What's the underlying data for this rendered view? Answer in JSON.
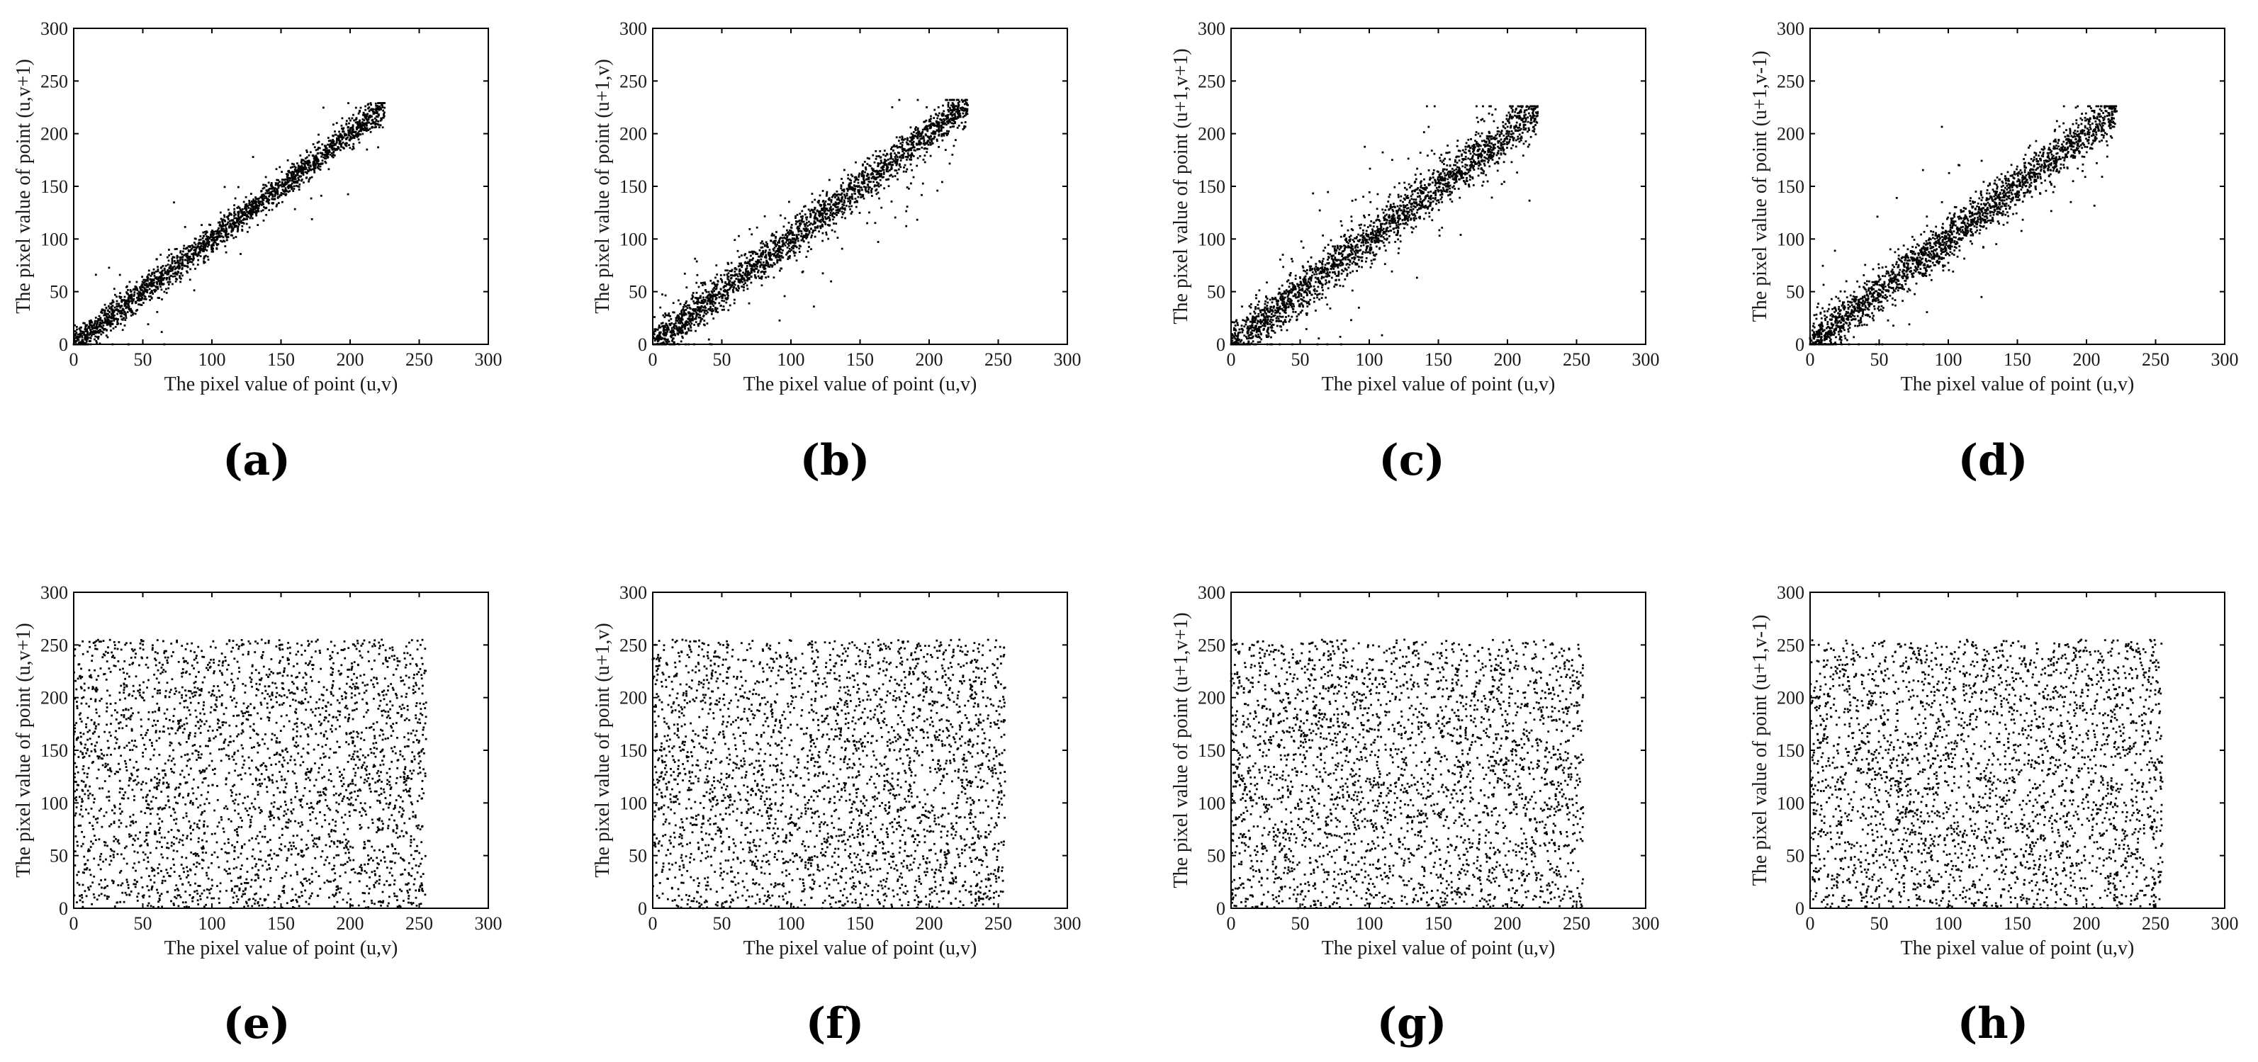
{
  "chart_data": [
    {
      "type": "scatter",
      "panel_label": "(a)",
      "xlabel": "The pixel value of point (u,v)",
      "ylabel": "The pixel value of point (u,v+1)",
      "xlim": [
        0,
        300
      ],
      "ylim": [
        0,
        300
      ],
      "xticks": [
        0,
        50,
        100,
        150,
        200,
        250,
        300
      ],
      "yticks": [
        0,
        50,
        100,
        150,
        200,
        250,
        300
      ],
      "pattern": "diagonal",
      "x_range": [
        0,
        225
      ],
      "spread": 7,
      "outlier_fraction": 0.03,
      "num_points": 2200,
      "seed": 11
    },
    {
      "type": "scatter",
      "panel_label": "(b)",
      "xlabel": "The pixel value of point (u,v)",
      "ylabel": "The pixel value of point (u+1,v)",
      "xlim": [
        0,
        300
      ],
      "ylim": [
        0,
        300
      ],
      "xticks": [
        0,
        50,
        100,
        150,
        200,
        250,
        300
      ],
      "yticks": [
        0,
        50,
        100,
        150,
        200,
        250,
        300
      ],
      "pattern": "diagonal",
      "x_range": [
        0,
        228
      ],
      "spread": 9,
      "outlier_fraction": 0.05,
      "num_points": 2200,
      "seed": 23
    },
    {
      "type": "scatter",
      "panel_label": "(c)",
      "xlabel": "The pixel value of point (u,v)",
      "ylabel": "The pixel value of point (u+1,v+1)",
      "xlim": [
        0,
        300
      ],
      "ylim": [
        0,
        300
      ],
      "xticks": [
        0,
        50,
        100,
        150,
        200,
        250,
        300
      ],
      "yticks": [
        0,
        50,
        100,
        150,
        200,
        250,
        300
      ],
      "pattern": "diagonal",
      "x_range": [
        0,
        222
      ],
      "spread": 11,
      "outlier_fraction": 0.07,
      "num_points": 2200,
      "seed": 37
    },
    {
      "type": "scatter",
      "panel_label": "(d)",
      "xlabel": "The pixel value of point (u,v)",
      "ylabel": "The pixel value of point (u+1,v-1)",
      "xlim": [
        0,
        300
      ],
      "ylim": [
        0,
        300
      ],
      "xticks": [
        0,
        50,
        100,
        150,
        200,
        250,
        300
      ],
      "yticks": [
        0,
        50,
        100,
        150,
        200,
        250,
        300
      ],
      "pattern": "diagonal",
      "x_range": [
        0,
        222
      ],
      "spread": 10,
      "outlier_fraction": 0.06,
      "num_points": 2200,
      "seed": 41
    },
    {
      "type": "scatter",
      "panel_label": "(e)",
      "xlabel": "The pixel value of point (u,v)",
      "ylabel": "The pixel value of point (u,v+1)",
      "xlim": [
        0,
        300
      ],
      "ylim": [
        0,
        300
      ],
      "xticks": [
        0,
        50,
        100,
        150,
        200,
        250,
        300
      ],
      "yticks": [
        0,
        50,
        100,
        150,
        200,
        250,
        300
      ],
      "pattern": "uniform",
      "x_range": [
        0,
        255
      ],
      "y_range": [
        0,
        255
      ],
      "num_points": 3000,
      "seed": 53
    },
    {
      "type": "scatter",
      "panel_label": "(f)",
      "xlabel": "The pixel value of point (u,v)",
      "ylabel": "The pixel value of point (u+1,v)",
      "xlim": [
        0,
        300
      ],
      "ylim": [
        0,
        300
      ],
      "xticks": [
        0,
        50,
        100,
        150,
        200,
        250,
        300
      ],
      "yticks": [
        0,
        50,
        100,
        150,
        200,
        250,
        300
      ],
      "pattern": "uniform",
      "x_range": [
        0,
        255
      ],
      "y_range": [
        0,
        255
      ],
      "num_points": 3000,
      "seed": 67
    },
    {
      "type": "scatter",
      "panel_label": "(g)",
      "xlabel": "The pixel value of point (u,v)",
      "ylabel": "The pixel value of point (u+1,v+1)",
      "xlim": [
        0,
        300
      ],
      "ylim": [
        0,
        300
      ],
      "xticks": [
        0,
        50,
        100,
        150,
        200,
        250,
        300
      ],
      "yticks": [
        0,
        50,
        100,
        150,
        200,
        250,
        300
      ],
      "pattern": "uniform",
      "x_range": [
        0,
        255
      ],
      "y_range": [
        0,
        255
      ],
      "num_points": 3000,
      "seed": 71
    },
    {
      "type": "scatter",
      "panel_label": "(h)",
      "xlabel": "The pixel value of point (u,v)",
      "ylabel": "The pixel value of point (u+1,v-1)",
      "xlim": [
        0,
        300
      ],
      "ylim": [
        0,
        300
      ],
      "xticks": [
        0,
        50,
        100,
        150,
        200,
        250,
        300
      ],
      "yticks": [
        0,
        50,
        100,
        150,
        200,
        250,
        300
      ],
      "pattern": "uniform",
      "x_range": [
        0,
        255
      ],
      "y_range": [
        0,
        255
      ],
      "num_points": 3000,
      "seed": 89
    }
  ]
}
